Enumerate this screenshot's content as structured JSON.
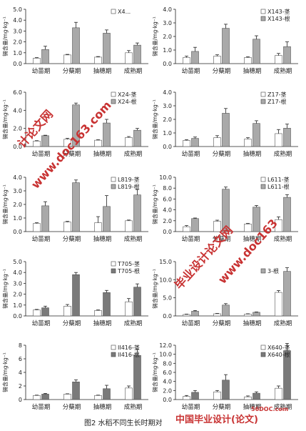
{
  "ylabel": "镉含量/mg·kg⁻¹",
  "categories": [
    "幼苗期",
    "分蘖期",
    "抽穗期",
    "成熟期"
  ],
  "watermarks": {
    "a": "计论文网",
    "b": "www.doc163.com",
    "c": "毕业设计论文网",
    "d": "www.doc163"
  },
  "caption": "图2 水稻不同生长时期对",
  "logo": {
    "text": "中国毕业设计(论文)",
    "site": "56DOC.com"
  },
  "chart_data": [
    {
      "type": "bar",
      "legend_single": "X4...",
      "ylim": [
        0,
        5
      ],
      "ticks": [
        "0.0",
        "1.0",
        "2.0",
        "3.0",
        "4.0",
        "5.0"
      ],
      "series": [
        {
          "name": "",
          "values": [
            0.5,
            0.8,
            0.6,
            1.0
          ],
          "err": [
            0.05,
            0.05,
            0.05,
            0.2
          ]
        },
        {
          "name": "",
          "values": [
            1.3,
            3.3,
            2.8,
            1.7
          ],
          "err": [
            0.3,
            0.5,
            0.3,
            0.2
          ]
        }
      ]
    },
    {
      "type": "bar",
      "legend": [
        "X143-茎",
        "X143-根"
      ],
      "ylim": [
        0,
        4
      ],
      "ticks": [
        "0.0",
        "1.0",
        "2.0",
        "3.0",
        "4.0"
      ],
      "series": [
        {
          "name": "X143-茎",
          "values": [
            0.45,
            0.55,
            0.45,
            0.6
          ],
          "err": [
            0.1,
            0.1,
            0.05,
            0.15
          ]
        },
        {
          "name": "X143-根",
          "values": [
            0.9,
            2.6,
            1.8,
            1.25
          ],
          "err": [
            0.3,
            0.3,
            0.25,
            0.35
          ]
        }
      ]
    },
    {
      "type": "bar",
      "legend": [
        "X24-茎",
        "X24-根"
      ],
      "ylim": [
        0,
        6
      ],
      "ticks": [
        "0.0",
        "2.0",
        "4.0",
        "6.0"
      ],
      "series": [
        {
          "name": "X24-茎",
          "values": [
            0.6,
            0.8,
            0.7,
            1.0
          ],
          "err": [
            0.05,
            0.1,
            0.05,
            0.1
          ]
        },
        {
          "name": "X24-根",
          "values": [
            1.2,
            4.6,
            2.6,
            1.8
          ],
          "err": [
            0.05,
            0.2,
            0.4,
            0.2
          ]
        }
      ]
    },
    {
      "type": "bar",
      "legend": [
        "Z17-茎",
        "Z17-根"
      ],
      "ylim": [
        0,
        4
      ],
      "ticks": [
        "0.0",
        "1.0",
        "2.0",
        "3.0",
        "4.0"
      ],
      "series": [
        {
          "name": "Z17-茎",
          "values": [
            0.45,
            0.65,
            0.55,
            0.95
          ],
          "err": [
            0.05,
            0.15,
            0.1,
            0.3
          ]
        },
        {
          "name": "Z17-根",
          "values": [
            0.6,
            2.45,
            1.7,
            1.35
          ],
          "err": [
            0.1,
            0.35,
            0.2,
            0.3
          ]
        }
      ]
    },
    {
      "type": "bar",
      "legend": [
        "L819-茎",
        "L819-根"
      ],
      "ylim": [
        0,
        4
      ],
      "ticks": [
        "0.0",
        "1.0",
        "2.0",
        "3.0",
        "4.0"
      ],
      "series": [
        {
          "name": "L819-茎",
          "values": [
            0.6,
            0.7,
            0.65,
            0.8
          ],
          "err": [
            0.05,
            0.05,
            0.45,
            0.05
          ]
        },
        {
          "name": "L819-根",
          "values": [
            1.9,
            3.6,
            1.85,
            2.7
          ],
          "err": [
            0.3,
            0.2,
            0.8,
            0.4
          ]
        }
      ]
    },
    {
      "type": "bar",
      "legend": [
        "L611-茎",
        "L611-根"
      ],
      "ylim": [
        0,
        10
      ],
      "ticks": [
        "0.0",
        "2.0",
        "4.0",
        "6.0",
        "8.0",
        "10.0"
      ],
      "series": [
        {
          "name": "L611-茎",
          "values": [
            0.9,
            1.9,
            1.4,
            2.2
          ],
          "err": [
            0.2,
            0.2,
            0.1,
            0.5
          ]
        },
        {
          "name": "L611-根",
          "values": [
            2.4,
            7.8,
            4.5,
            6.3
          ],
          "err": [
            0.1,
            0.4,
            0.3,
            0.5
          ]
        }
      ]
    },
    {
      "type": "bar",
      "legend": [
        "T705-茎",
        "T705-根"
      ],
      "ylim": [
        0,
        5
      ],
      "ticks": [
        "0.0",
        "1.0",
        "2.0",
        "3.0",
        "4.0",
        "5.0"
      ],
      "series": [
        {
          "name": "T705-茎",
          "values": [
            0.55,
            0.9,
            0.5,
            1.3
          ],
          "err": [
            0.05,
            0.15,
            0.05,
            0.3
          ]
        },
        {
          "name": "T705-根",
          "values": [
            0.75,
            3.8,
            2.15,
            2.65
          ],
          "err": [
            0.15,
            0.2,
            0.2,
            0.3
          ]
        }
      ]
    },
    {
      "type": "bar",
      "legend": [
        "",
        "3-根"
      ],
      "ylim": [
        0,
        15
      ],
      "ticks": [
        "0.0",
        "5.0",
        "10.0",
        "15.0"
      ],
      "series": [
        {
          "name": "",
          "values": [
            0.4,
            0.6,
            0.5,
            6.5
          ],
          "err": [
            0.1,
            0.1,
            0.1,
            0.5
          ]
        },
        {
          "name": "3-根",
          "values": [
            1.3,
            3.0,
            1.0,
            12.3
          ],
          "err": [
            0.2,
            0.4,
            0.1,
            1.0
          ]
        }
      ]
    },
    {
      "type": "bar",
      "legend": [
        "II416-茎",
        "II416-根"
      ],
      "ylim": [
        0,
        8
      ],
      "ticks": [
        "0",
        "2",
        "4",
        "6",
        "8"
      ],
      "series": [
        {
          "name": "II416-茎",
          "values": [
            0.6,
            0.8,
            0.6,
            1.7
          ],
          "err": [
            0.05,
            0.05,
            0.05,
            0.3
          ]
        },
        {
          "name": "II416-根",
          "values": [
            0.8,
            2.6,
            1.6,
            6.5
          ],
          "err": [
            0.1,
            0.3,
            0.5,
            0.9
          ]
        }
      ]
    },
    {
      "type": "bar",
      "legend": [
        "X640-茎",
        "X640-根"
      ],
      "ylim": [
        0,
        12
      ],
      "ticks": [
        "0.0",
        "2.0",
        "4.0",
        "6.0",
        "8.0",
        "10.0",
        "12.0"
      ],
      "series": [
        {
          "name": "X640-茎",
          "values": [
            0.7,
            1.7,
            0.6,
            2.5
          ],
          "err": [
            0.2,
            0.3,
            0.2,
            0.5
          ]
        },
        {
          "name": "X640-根",
          "values": [
            1.6,
            4.3,
            1.4,
            10.8
          ],
          "err": [
            0.4,
            1.2,
            0.3,
            1.6
          ]
        }
      ]
    }
  ]
}
